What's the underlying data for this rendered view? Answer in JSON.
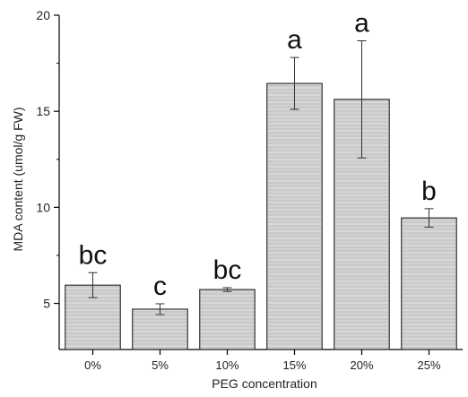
{
  "chart_data": {
    "type": "bar",
    "categories": [
      "0%",
      "5%",
      "10%",
      "15%",
      "20%",
      "25%"
    ],
    "values": [
      5.95,
      4.7,
      5.72,
      16.45,
      15.62,
      9.45
    ],
    "errors": [
      0.65,
      0.28,
      0.1,
      1.35,
      3.05,
      0.48
    ],
    "significance_labels": [
      "bc",
      "c",
      "bc",
      "a",
      "a",
      "b"
    ],
    "title": "",
    "xlabel": "PEG concentration",
    "ylabel": "MDA content (umol/g FW)",
    "ylim": [
      2.6,
      20
    ],
    "yticks": [
      5,
      10,
      15,
      20
    ],
    "grid": false,
    "legend": "none",
    "colors": {
      "bar_fill": "#c9c9c9",
      "bar_stripe": "#e4e4e4",
      "bar_edge": "#333333",
      "axis": "#000000"
    }
  }
}
